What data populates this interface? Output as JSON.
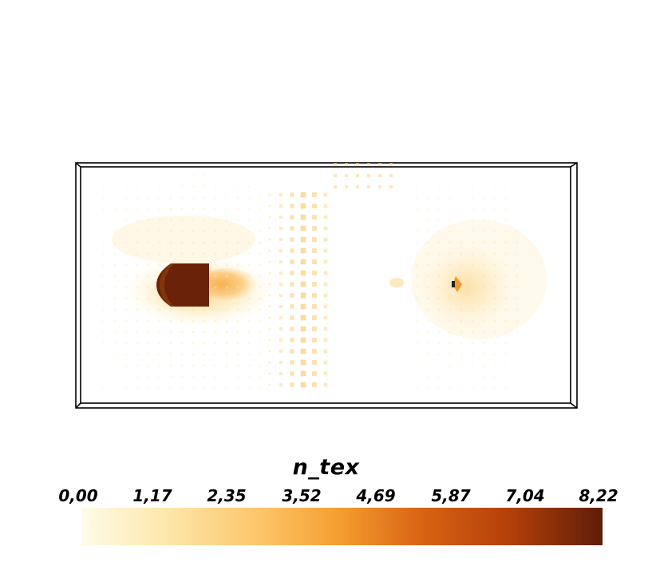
{
  "legend": {
    "title": "n_tex",
    "ticks": [
      "0,00",
      "1,17",
      "2,35",
      "3,52",
      "4,69",
      "5,87",
      "7,04",
      "8,22"
    ],
    "range": [
      0.0,
      8.22
    ],
    "colormap": [
      "#fffbe8",
      "#fde7a6",
      "#fcbe5a",
      "#f29a2c",
      "#d55d12",
      "#ad3508",
      "#5f1e08"
    ]
  },
  "plot_colors": {
    "frame": "#000000",
    "background": "#ffffff",
    "high": "#6a2308",
    "mid": "#f7b24e",
    "low": "#fdf0c8"
  }
}
